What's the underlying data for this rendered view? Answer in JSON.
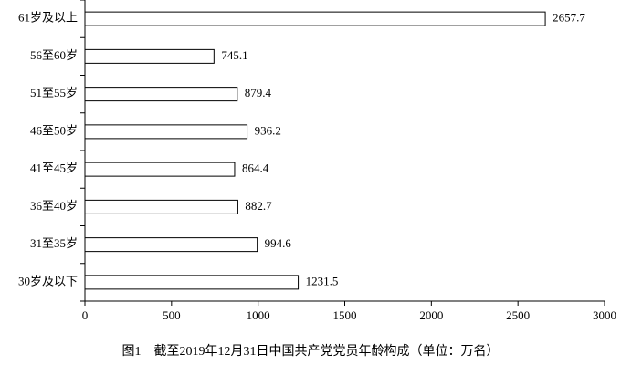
{
  "chart_data": {
    "type": "bar",
    "orientation": "horizontal",
    "title": "图1　截至2019年12月31日中国共产党党员年龄构成（单位：万名）",
    "categories": [
      "61岁及以上",
      "56至60岁",
      "51至55岁",
      "46至50岁",
      "41至45岁",
      "36至40岁",
      "31至35岁",
      "30岁及以下"
    ],
    "values": [
      2657.7,
      745.1,
      879.4,
      936.2,
      864.4,
      882.7,
      994.6,
      1231.5
    ],
    "color": "#ffffff",
    "xlim": [
      0,
      3000
    ],
    "xticks": [
      0,
      500,
      1000,
      1500,
      2000,
      2500,
      3000
    ]
  }
}
